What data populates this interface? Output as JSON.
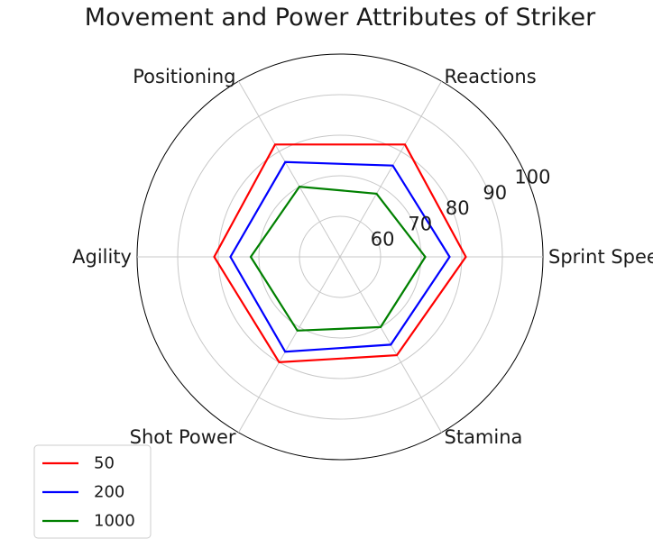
{
  "chart_data": {
    "type": "radar",
    "title": "Movement and Power Attributes of Striker",
    "categories": [
      "Sprint Speed",
      "Reactions",
      "Positioning",
      "Agility",
      "Shot Power",
      "Stamina"
    ],
    "rticks": [
      60,
      70,
      80,
      90,
      100
    ],
    "rlim": [
      50,
      100
    ],
    "grid": true,
    "legend_position": "lower-left",
    "series": [
      {
        "name": "50",
        "color": "#ff0000",
        "values": [
          81,
          82,
          82,
          81,
          80,
          78
        ]
      },
      {
        "name": "200",
        "color": "#0000ff",
        "values": [
          77,
          76,
          77,
          77,
          77,
          75
        ]
      },
      {
        "name": "1000",
        "color": "#008000",
        "values": [
          71,
          68,
          70,
          72,
          71,
          70
        ]
      }
    ]
  }
}
